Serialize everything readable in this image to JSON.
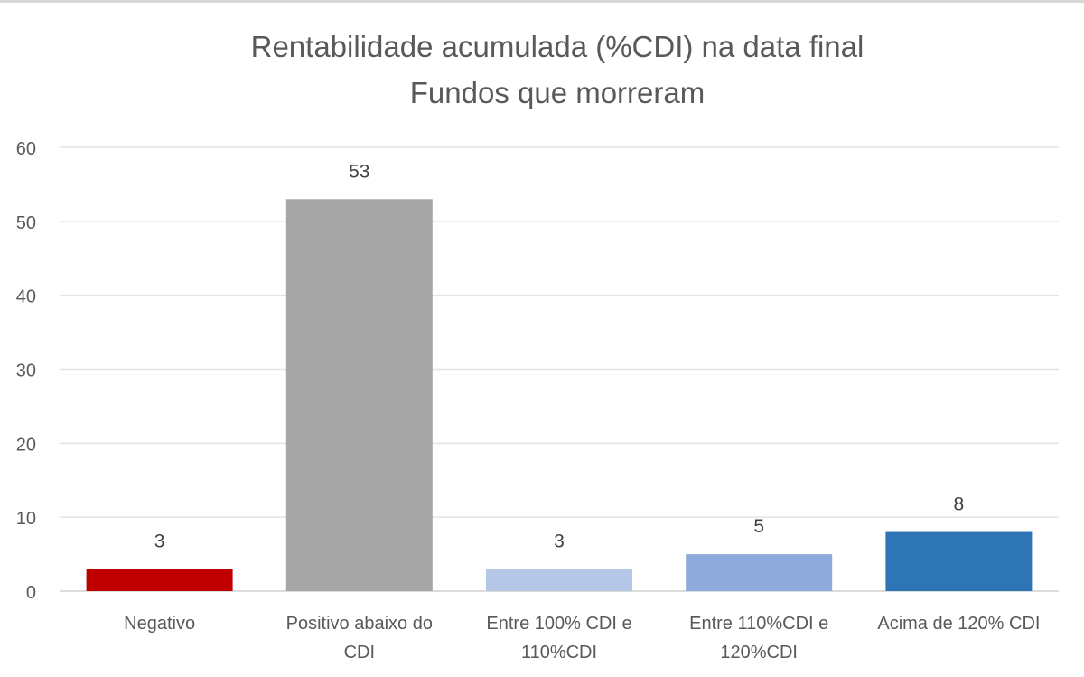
{
  "chart_data": {
    "type": "bar",
    "title": [
      "Rentabilidade acumulada (%CDI) na data final",
      "Fundos que morreram"
    ],
    "xlabel": "",
    "ylabel": "",
    "ylim": [
      0,
      60
    ],
    "yticks": [
      0,
      10,
      20,
      30,
      40,
      50,
      60
    ],
    "grid": true,
    "legend": "none",
    "categories": [
      [
        "Negativo"
      ],
      [
        "Positivo abaixo do",
        "CDI"
      ],
      [
        "Entre 100% CDI e",
        "110%CDI"
      ],
      [
        "Entre 110%CDI e",
        "120%CDI"
      ],
      [
        "Acima de 120% CDI"
      ]
    ],
    "values": [
      3,
      53,
      3,
      5,
      8
    ],
    "data_labels": [
      "3",
      "53",
      "3",
      "5",
      "8"
    ],
    "colors": [
      "#c00000",
      "#a6a6a6",
      "#b4c7e7",
      "#8faadc",
      "#2e75b6"
    ]
  },
  "style": {
    "title_color": "#595959",
    "label_color": "#595959",
    "grid_color": "#e3e3e3",
    "axis_color": "#d0d0d0"
  }
}
